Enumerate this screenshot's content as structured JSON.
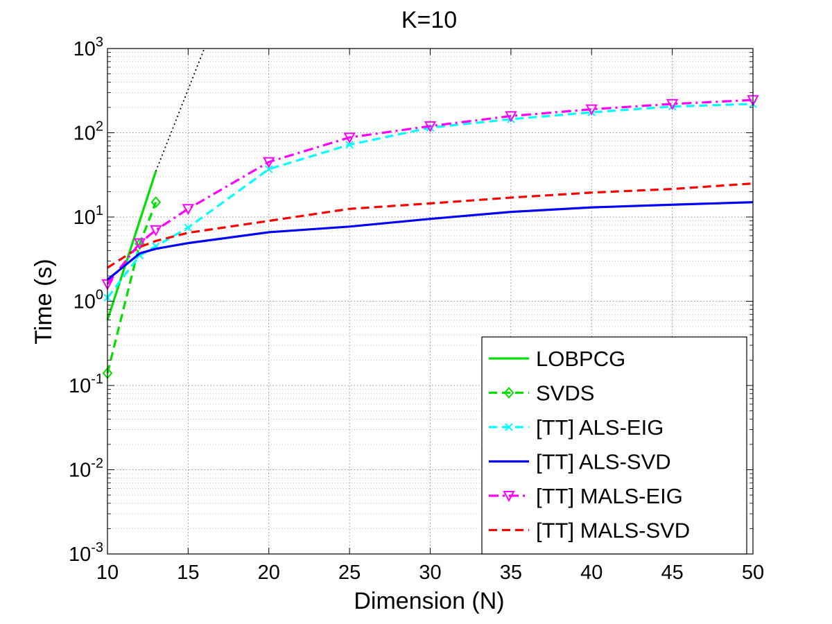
{
  "chart_data": {
    "type": "line",
    "title": "K=10",
    "xlabel": "Dimension (N)",
    "ylabel": "Time (s)",
    "xlim": [
      10,
      50
    ],
    "ylim": [
      0.001,
      1000
    ],
    "yscale": "log",
    "grid": true,
    "legend_position": "bottom-right",
    "x_ticks": [
      10,
      15,
      20,
      25,
      30,
      35,
      40,
      45,
      50
    ],
    "y_ticks": [
      {
        "value": 0.001,
        "base": "10",
        "exp": "-3"
      },
      {
        "value": 0.01,
        "base": "10",
        "exp": "-2"
      },
      {
        "value": 0.1,
        "base": "10",
        "exp": "-1"
      },
      {
        "value": 1,
        "base": "10",
        "exp": "0"
      },
      {
        "value": 10,
        "base": "10",
        "exp": "1"
      },
      {
        "value": 100,
        "base": "10",
        "exp": "2"
      },
      {
        "value": 1000,
        "base": "10",
        "exp": "3"
      }
    ],
    "series": [
      {
        "name": "LOBPCG",
        "color": "#00e000",
        "dash": "solid",
        "marker": "none",
        "x": [
          10,
          13
        ],
        "y": [
          0.6,
          35
        ]
      },
      {
        "name": "SVDS",
        "color": "#00e000",
        "dash": "dashed",
        "marker": "diamond",
        "x": [
          10,
          12,
          13
        ],
        "y": [
          0.14,
          4.8,
          15
        ]
      },
      {
        "name": "[TT] ALS-EIG",
        "color": "#00ffff",
        "dash": "dashed",
        "marker": "x",
        "x": [
          10,
          12,
          13,
          15,
          20,
          25,
          30,
          35,
          40,
          45,
          50
        ],
        "y": [
          1.1,
          3.5,
          4.5,
          7.5,
          37,
          72,
          115,
          145,
          175,
          205,
          220
        ]
      },
      {
        "name": "[TT] ALS-SVD",
        "color": "#0000ff",
        "dash": "solid",
        "marker": "none",
        "x": [
          10,
          12,
          13,
          15,
          20,
          25,
          30,
          35,
          40,
          45,
          50
        ],
        "y": [
          1.8,
          3.7,
          4.2,
          4.9,
          6.6,
          7.7,
          9.5,
          11.5,
          13,
          14,
          15
        ]
      },
      {
        "name": "[TT] MALS-EIG",
        "color": "#ff00ff",
        "dash": "dashdot",
        "marker": "triangle-down",
        "x": [
          10,
          12,
          13,
          15,
          20,
          25,
          30,
          35,
          40,
          45,
          50
        ],
        "y": [
          1.6,
          4.9,
          7,
          12.5,
          45,
          88,
          120,
          158,
          190,
          220,
          245
        ]
      },
      {
        "name": "[TT] MALS-SVD",
        "color": "#ff0000",
        "dash": "dashed",
        "marker": "none",
        "x": [
          10,
          12,
          13,
          15,
          20,
          25,
          30,
          35,
          40,
          45,
          50
        ],
        "y": [
          2.5,
          4.4,
          5.2,
          6.5,
          9,
          12.5,
          14.5,
          17,
          19.5,
          21.5,
          25
        ]
      }
    ],
    "extrapolation": {
      "name": "LOBPCG extrapolation",
      "color": "#000000",
      "dash": "dotted",
      "x": [
        13,
        16
      ],
      "y": [
        35,
        1000
      ]
    }
  }
}
